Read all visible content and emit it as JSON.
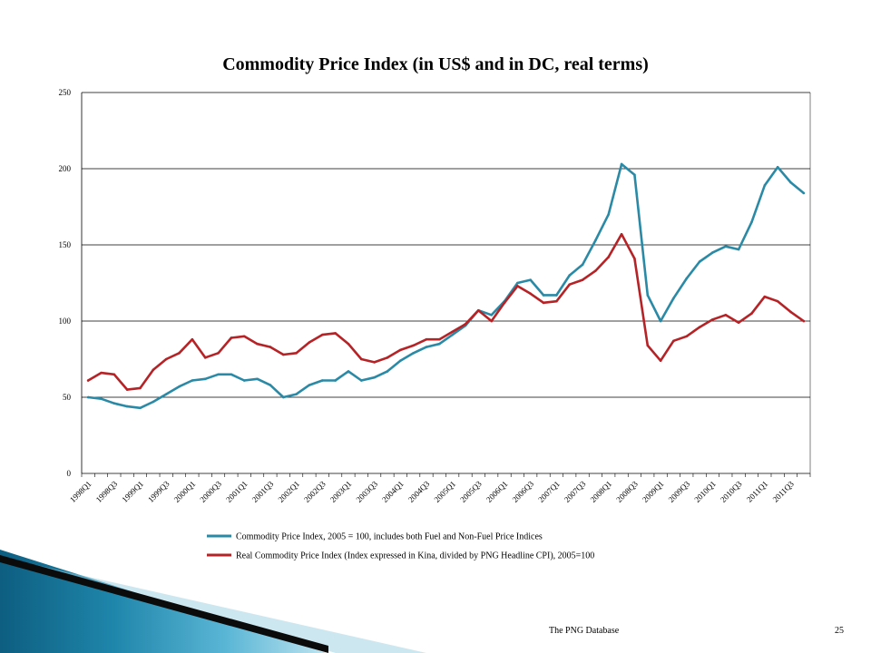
{
  "slide": {
    "footer_text": "The PNG Database",
    "page_number": "25"
  },
  "chart_data": {
    "type": "line",
    "title": "Commodity Price Index (in US$ and in DC, real terms)",
    "xlabel": "",
    "ylabel": "",
    "ylim": [
      0,
      250
    ],
    "yticks": [
      0,
      50,
      100,
      150,
      200,
      250
    ],
    "grid": true,
    "legend_position": "bottom",
    "x": [
      "1998Q1",
      "1998Q2",
      "1998Q3",
      "1998Q4",
      "1999Q1",
      "1999Q2",
      "1999Q3",
      "1999Q4",
      "2000Q1",
      "2000Q2",
      "2000Q3",
      "2000Q4",
      "2001Q1",
      "2001Q2",
      "2001Q3",
      "2001Q4",
      "2002Q1",
      "2002Q2",
      "2002Q3",
      "2002Q4",
      "2003Q1",
      "2003Q2",
      "2003Q3",
      "2003Q4",
      "2004Q1",
      "2004Q2",
      "2004Q3",
      "2004Q4",
      "2005Q1",
      "2005Q2",
      "2005Q3",
      "2005Q4",
      "2006Q1",
      "2006Q2",
      "2006Q3",
      "2006Q4",
      "2007Q1",
      "2007Q2",
      "2007Q3",
      "2007Q4",
      "2008Q1",
      "2008Q2",
      "2008Q3",
      "2008Q4",
      "2009Q1",
      "2009Q2",
      "2009Q3",
      "2009Q4",
      "2010Q1",
      "2010Q2",
      "2010Q3",
      "2010Q4",
      "2011Q1",
      "2011Q2",
      "2011Q3",
      "2011Q4"
    ],
    "tick_labels": [
      "1998Q1",
      "1998Q3",
      "1999Q1",
      "1999Q3",
      "2000Q1",
      "2000Q3",
      "2001Q1",
      "2001Q3",
      "2002Q1",
      "2002Q3",
      "2003Q1",
      "2003Q3",
      "2004Q1",
      "2004Q3",
      "2005Q1",
      "2005Q3",
      "2006Q1",
      "2006Q3",
      "2007Q1",
      "2007Q3",
      "2008Q1",
      "2008Q3",
      "2009Q1",
      "2009Q3",
      "2010Q1",
      "2010Q3",
      "2011Q1",
      "2011Q3"
    ],
    "series": [
      {
        "name": "Commodity Price Index, 2005 = 100, includes both Fuel and Non-Fuel Price Indices",
        "color": "#2a8aa6",
        "values": [
          50,
          49,
          46,
          44,
          43,
          47,
          52,
          57,
          61,
          62,
          65,
          65,
          61,
          62,
          58,
          50,
          52,
          58,
          61,
          61,
          67,
          61,
          63,
          67,
          74,
          79,
          83,
          85,
          91,
          97,
          107,
          104,
          113,
          125,
          127,
          117,
          117,
          130,
          137,
          153,
          170,
          203,
          196,
          117,
          100,
          115,
          128,
          139,
          145,
          149,
          147,
          165,
          189,
          201,
          191,
          184
        ]
      },
      {
        "name": "Real Commodity Price Index (Index expressed in Kina, divided by PNG Headline CPI), 2005=100",
        "color": "#b52326",
        "values": [
          61,
          66,
          65,
          55,
          56,
          68,
          75,
          79,
          88,
          76,
          79,
          89,
          90,
          85,
          83,
          78,
          79,
          86,
          91,
          92,
          85,
          75,
          73,
          76,
          81,
          84,
          88,
          88,
          93,
          98,
          107,
          100,
          112,
          123,
          118,
          112,
          113,
          124,
          127,
          133,
          142,
          157,
          141,
          84,
          74,
          87,
          90,
          96,
          101,
          104,
          99,
          105,
          116,
          113,
          106,
          100
        ]
      }
    ]
  }
}
